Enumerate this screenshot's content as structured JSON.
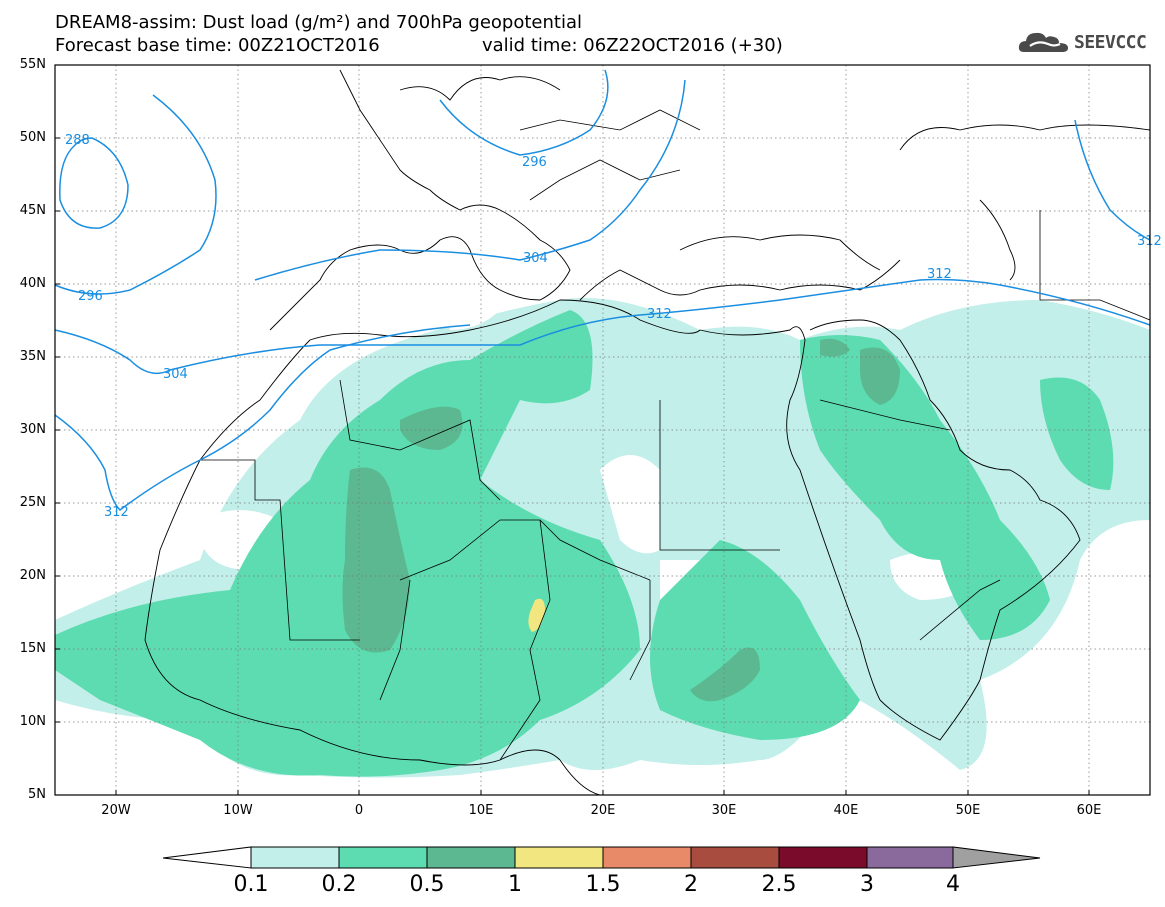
{
  "title_line1": "DREAM8-assim: Dust load (g/m²) and 700hPa geopotential",
  "title_line2": "Forecast base time: 00Z21OCT2016",
  "title_line3": "valid time: 06Z22OCT2016 (+30)",
  "logo": {
    "icon": "cloud-logo-icon",
    "text": "SEEVCCC"
  },
  "lat_labels": [
    "55N",
    "50N",
    "45N",
    "40N",
    "35N",
    "30N",
    "25N",
    "20N",
    "15N",
    "10N",
    "5N"
  ],
  "lon_labels": [
    "20W",
    "10W",
    "0",
    "10E",
    "20E",
    "30E",
    "40E",
    "50E",
    "60E"
  ],
  "contour_labels": [
    "288",
    "296",
    "296",
    "304",
    "304",
    "312",
    "312",
    "312",
    "312"
  ],
  "colorbar": {
    "labels": [
      "0.1",
      "0.2",
      "0.5",
      "1",
      "1.5",
      "2",
      "2.5",
      "3",
      "4"
    ],
    "colors": [
      "#c2efe9",
      "#5cdcb0",
      "#5bb890",
      "#f2e680",
      "#e88a68",
      "#a84c40",
      "#7a0b2a",
      "#8a6a9c",
      "#a0a0a0"
    ]
  },
  "colors": {
    "geopotential_line": "#1a8ee0",
    "border": "#000000"
  }
}
